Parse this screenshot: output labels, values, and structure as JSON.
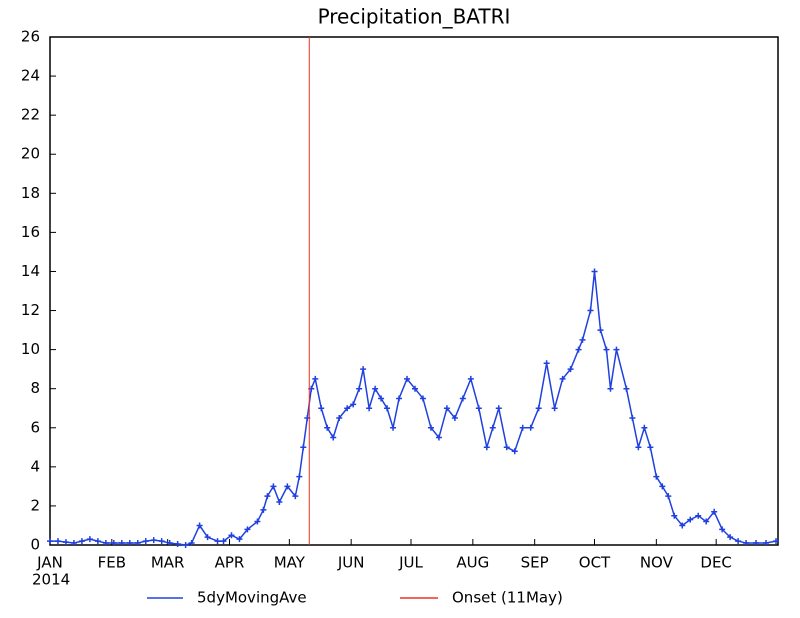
{
  "chart_data": {
    "type": "line",
    "title": "Precipitation_BATRI",
    "x": [
      1,
      5,
      9,
      13,
      17,
      21,
      25,
      29,
      33,
      37,
      41,
      45,
      49,
      53,
      57,
      61,
      65,
      69,
      72,
      76,
      80,
      85,
      88,
      92,
      96,
      100,
      105,
      108,
      110,
      113,
      116,
      120,
      124,
      126,
      128,
      130,
      132,
      134,
      137,
      140,
      143,
      146,
      150,
      153,
      156,
      158,
      161,
      164,
      167,
      170,
      173,
      176,
      180,
      184,
      188,
      192,
      196,
      200,
      204,
      208,
      212,
      216,
      220,
      223,
      226,
      230,
      234,
      238,
      242,
      246,
      250,
      254,
      258,
      262,
      266,
      268,
      272,
      274,
      277,
      280,
      282,
      285,
      290,
      293,
      296,
      299,
      302,
      305,
      308,
      311,
      314,
      318,
      322,
      326,
      330,
      334,
      338,
      342,
      346,
      350,
      355,
      360,
      365
    ],
    "series": [
      {
        "name": "5dyMovingAve",
        "color": "#2040e0",
        "values": [
          0.2,
          0.2,
          0.15,
          0.1,
          0.2,
          0.3,
          0.2,
          0.1,
          0.1,
          0.1,
          0.1,
          0.1,
          0.2,
          0.25,
          0.2,
          0.1,
          0.05,
          0,
          0.1,
          1.0,
          0.4,
          0.2,
          0.2,
          0.5,
          0.3,
          0.8,
          1.2,
          1.8,
          2.5,
          3.0,
          2.2,
          3.0,
          2.5,
          3.5,
          5.0,
          6.5,
          8.0,
          8.5,
          7.0,
          6.0,
          5.5,
          6.5,
          7.0,
          7.2,
          8.0,
          9.0,
          7.0,
          8.0,
          7.5,
          7.0,
          6.0,
          7.5,
          8.5,
          8.0,
          7.5,
          6.0,
          5.5,
          7.0,
          6.5,
          7.5,
          8.5,
          7.0,
          5.0,
          6.0,
          7.0,
          5.0,
          4.8,
          6.0,
          6.0,
          7.0,
          9.3,
          7.0,
          8.5,
          9.0,
          10.0,
          10.5,
          12.0,
          14.0,
          11.0,
          10.0,
          8.0,
          10.0,
          8.0,
          6.5,
          5.0,
          6.0,
          5.0,
          3.5,
          3.0,
          2.5,
          1.5,
          1.0,
          1.3,
          1.5,
          1.2,
          1.7,
          0.8,
          0.4,
          0.2,
          0.1,
          0.1,
          0.1,
          0.2
        ]
      }
    ],
    "onset": {
      "name": "Onset (11May)",
      "x": 131,
      "color": "#f03020"
    },
    "xlim": [
      1,
      366
    ],
    "xticks": [
      {
        "value": 1,
        "label": "JAN"
      },
      {
        "value": 32,
        "label": "FEB"
      },
      {
        "value": 60,
        "label": "MAR"
      },
      {
        "value": 91,
        "label": "APR"
      },
      {
        "value": 121,
        "label": "MAY"
      },
      {
        "value": 152,
        "label": "JUN"
      },
      {
        "value": 182,
        "label": "JUL"
      },
      {
        "value": 213,
        "label": "AUG"
      },
      {
        "value": 244,
        "label": "SEP"
      },
      {
        "value": 274,
        "label": "OCT"
      },
      {
        "value": 305,
        "label": "NOV"
      },
      {
        "value": 335,
        "label": "DEC"
      }
    ],
    "x_year_label": "2014",
    "ylim": [
      0,
      26
    ],
    "yticks": [
      0,
      2,
      4,
      6,
      8,
      10,
      12,
      14,
      16,
      18,
      20,
      22,
      24,
      26
    ]
  }
}
